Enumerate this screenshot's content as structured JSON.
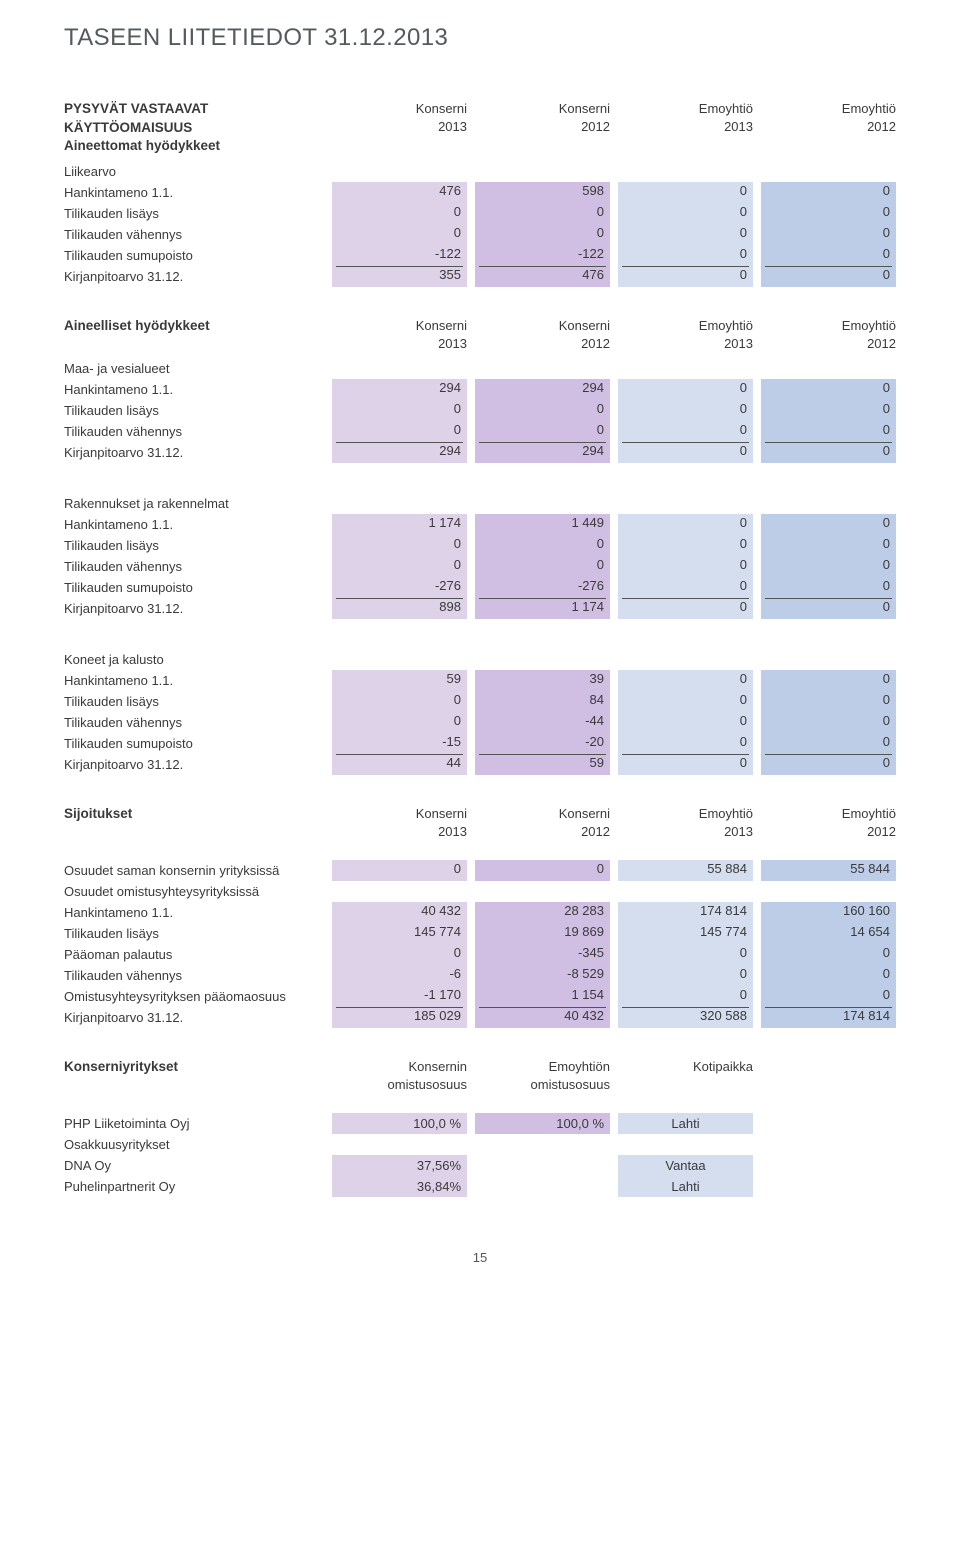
{
  "page": {
    "title": "TASEEN LIITETIEDOT 31.12.2013",
    "number": "15"
  },
  "colors": {
    "col1_bg": "#ded2e9",
    "col2_bg": "#d1bee3",
    "col3_bg": "#d4deee",
    "col4_bg": "#bdcde8",
    "text": "#3a3a3b",
    "title": "#555b5c",
    "rule": "#535353",
    "background": "#ffffff"
  },
  "columns4": [
    {
      "l1": "Konserni",
      "l2": "2013"
    },
    {
      "l1": "Konserni",
      "l2": "2012"
    },
    {
      "l1": "Emoyhtiö",
      "l2": "2013"
    },
    {
      "l1": "Emoyhtiö",
      "l2": "2012"
    }
  ],
  "columns3": [
    {
      "l1": "Konsernin",
      "l2": "omistusosuus"
    },
    {
      "l1": "Emoyhtiön",
      "l2": "omistusosuus"
    },
    {
      "l1": "",
      "l2": "Kotipaikka"
    }
  ],
  "sections4": [
    {
      "heading1": "PYSYVÄT VASTAAVAT",
      "heading2": "KÄYTTÖOMAISUUS",
      "label": "Aineettomat hyödykkeet",
      "sub": "Liikearvo",
      "showHeader": true,
      "rows": [
        {
          "label": "Hankintameno 1.1.",
          "v": [
            "476",
            "598",
            "0",
            "0"
          ]
        },
        {
          "label": "Tilikauden lisäys",
          "v": [
            "0",
            "0",
            "0",
            "0"
          ]
        },
        {
          "label": "Tilikauden vähennys",
          "v": [
            "0",
            "0",
            "0",
            "0"
          ]
        },
        {
          "label": "Tilikauden sumupoisto",
          "v": [
            "-122",
            "-122",
            "0",
            "0"
          ]
        },
        {
          "label": "Kirjanpitoarvo 31.12.",
          "v": [
            "355",
            "476",
            "0",
            "0"
          ],
          "topline": true
        }
      ]
    },
    {
      "label": "Aineelliset hyödykkeet",
      "sub": "Maa- ja vesialueet",
      "showHeader": true,
      "rows": [
        {
          "label": "Hankintameno 1.1.",
          "v": [
            "294",
            "294",
            "0",
            "0"
          ]
        },
        {
          "label": "Tilikauden lisäys",
          "v": [
            "0",
            "0",
            "0",
            "0"
          ]
        },
        {
          "label": "Tilikauden vähennys",
          "v": [
            "0",
            "0",
            "0",
            "0"
          ]
        },
        {
          "label": "Kirjanpitoarvo 31.12.",
          "v": [
            "294",
            "294",
            "0",
            "0"
          ],
          "topline": true
        }
      ]
    },
    {
      "sub": "Rakennukset ja rakennelmat",
      "rows": [
        {
          "label": "Hankintameno 1.1.",
          "v": [
            "1 174",
            "1 449",
            "0",
            "0"
          ]
        },
        {
          "label": "Tilikauden lisäys",
          "v": [
            "0",
            "0",
            "0",
            "0"
          ]
        },
        {
          "label": "Tilikauden vähennys",
          "v": [
            "0",
            "0",
            "0",
            "0"
          ]
        },
        {
          "label": "Tilikauden sumupoisto",
          "v": [
            "-276",
            "-276",
            "0",
            "0"
          ]
        },
        {
          "label": "Kirjanpitoarvo 31.12.",
          "v": [
            "898",
            "1 174",
            "0",
            "0"
          ],
          "topline": true
        }
      ]
    },
    {
      "sub": "Koneet ja kalusto",
      "rows": [
        {
          "label": "Hankintameno 1.1.",
          "v": [
            "59",
            "39",
            "0",
            "0"
          ]
        },
        {
          "label": "Tilikauden lisäys",
          "v": [
            "0",
            "84",
            "0",
            "0"
          ]
        },
        {
          "label": "Tilikauden vähennys",
          "v": [
            "0",
            "-44",
            "0",
            "0"
          ]
        },
        {
          "label": "Tilikauden sumupoisto",
          "v": [
            "-15",
            "-20",
            "0",
            "0"
          ]
        },
        {
          "label": "Kirjanpitoarvo 31.12.",
          "v": [
            "44",
            "59",
            "0",
            "0"
          ],
          "topline": true
        }
      ]
    },
    {
      "label": "Sijoitukset",
      "showHeader": true,
      "rows": [
        {
          "label": "Osuudet saman konsernin yrityksissä",
          "v": [
            "0",
            "0",
            "55 884",
            "55 844"
          ],
          "gapBefore": true
        },
        {
          "label": "Osuudet omistusyhteysyrityksissä",
          "noVals": true
        },
        {
          "label": "Hankintameno 1.1.",
          "v": [
            "40 432",
            "28 283",
            "174 814",
            "160 160"
          ]
        },
        {
          "label": "Tilikauden lisäys",
          "v": [
            "145 774",
            "19 869",
            "145 774",
            "14 654"
          ]
        },
        {
          "label": "Pääoman palautus",
          "v": [
            "0",
            "-345",
            "0",
            "0"
          ]
        },
        {
          "label": "Tilikauden vähennys",
          "v": [
            "-6",
            "-8 529",
            "0",
            "0"
          ]
        },
        {
          "label": "Omistusyhteysyrityksen pääomaosuus",
          "v": [
            "-1 170",
            "1 154",
            "0",
            "0"
          ]
        },
        {
          "label": "Kirjanpitoarvo 31.12.",
          "v": [
            "185 029",
            "40 432",
            "320 588",
            "174 814"
          ],
          "topline": true
        }
      ]
    }
  ],
  "section3": {
    "label": "Konserniyritykset",
    "rows": [
      {
        "label": "PHP Liiketoiminta Oyj",
        "v": [
          "100,0 %",
          "100,0 %",
          "Lahti"
        ],
        "gapBefore": true
      },
      {
        "label": "Osakkuusyritykset",
        "noVals": true
      },
      {
        "label": "DNA Oy",
        "v": [
          "37,56%",
          "",
          "Vantaa"
        ]
      },
      {
        "label": "Puhelinpartnerit Oy",
        "v": [
          "36,84%",
          "",
          "Lahti"
        ]
      }
    ]
  }
}
